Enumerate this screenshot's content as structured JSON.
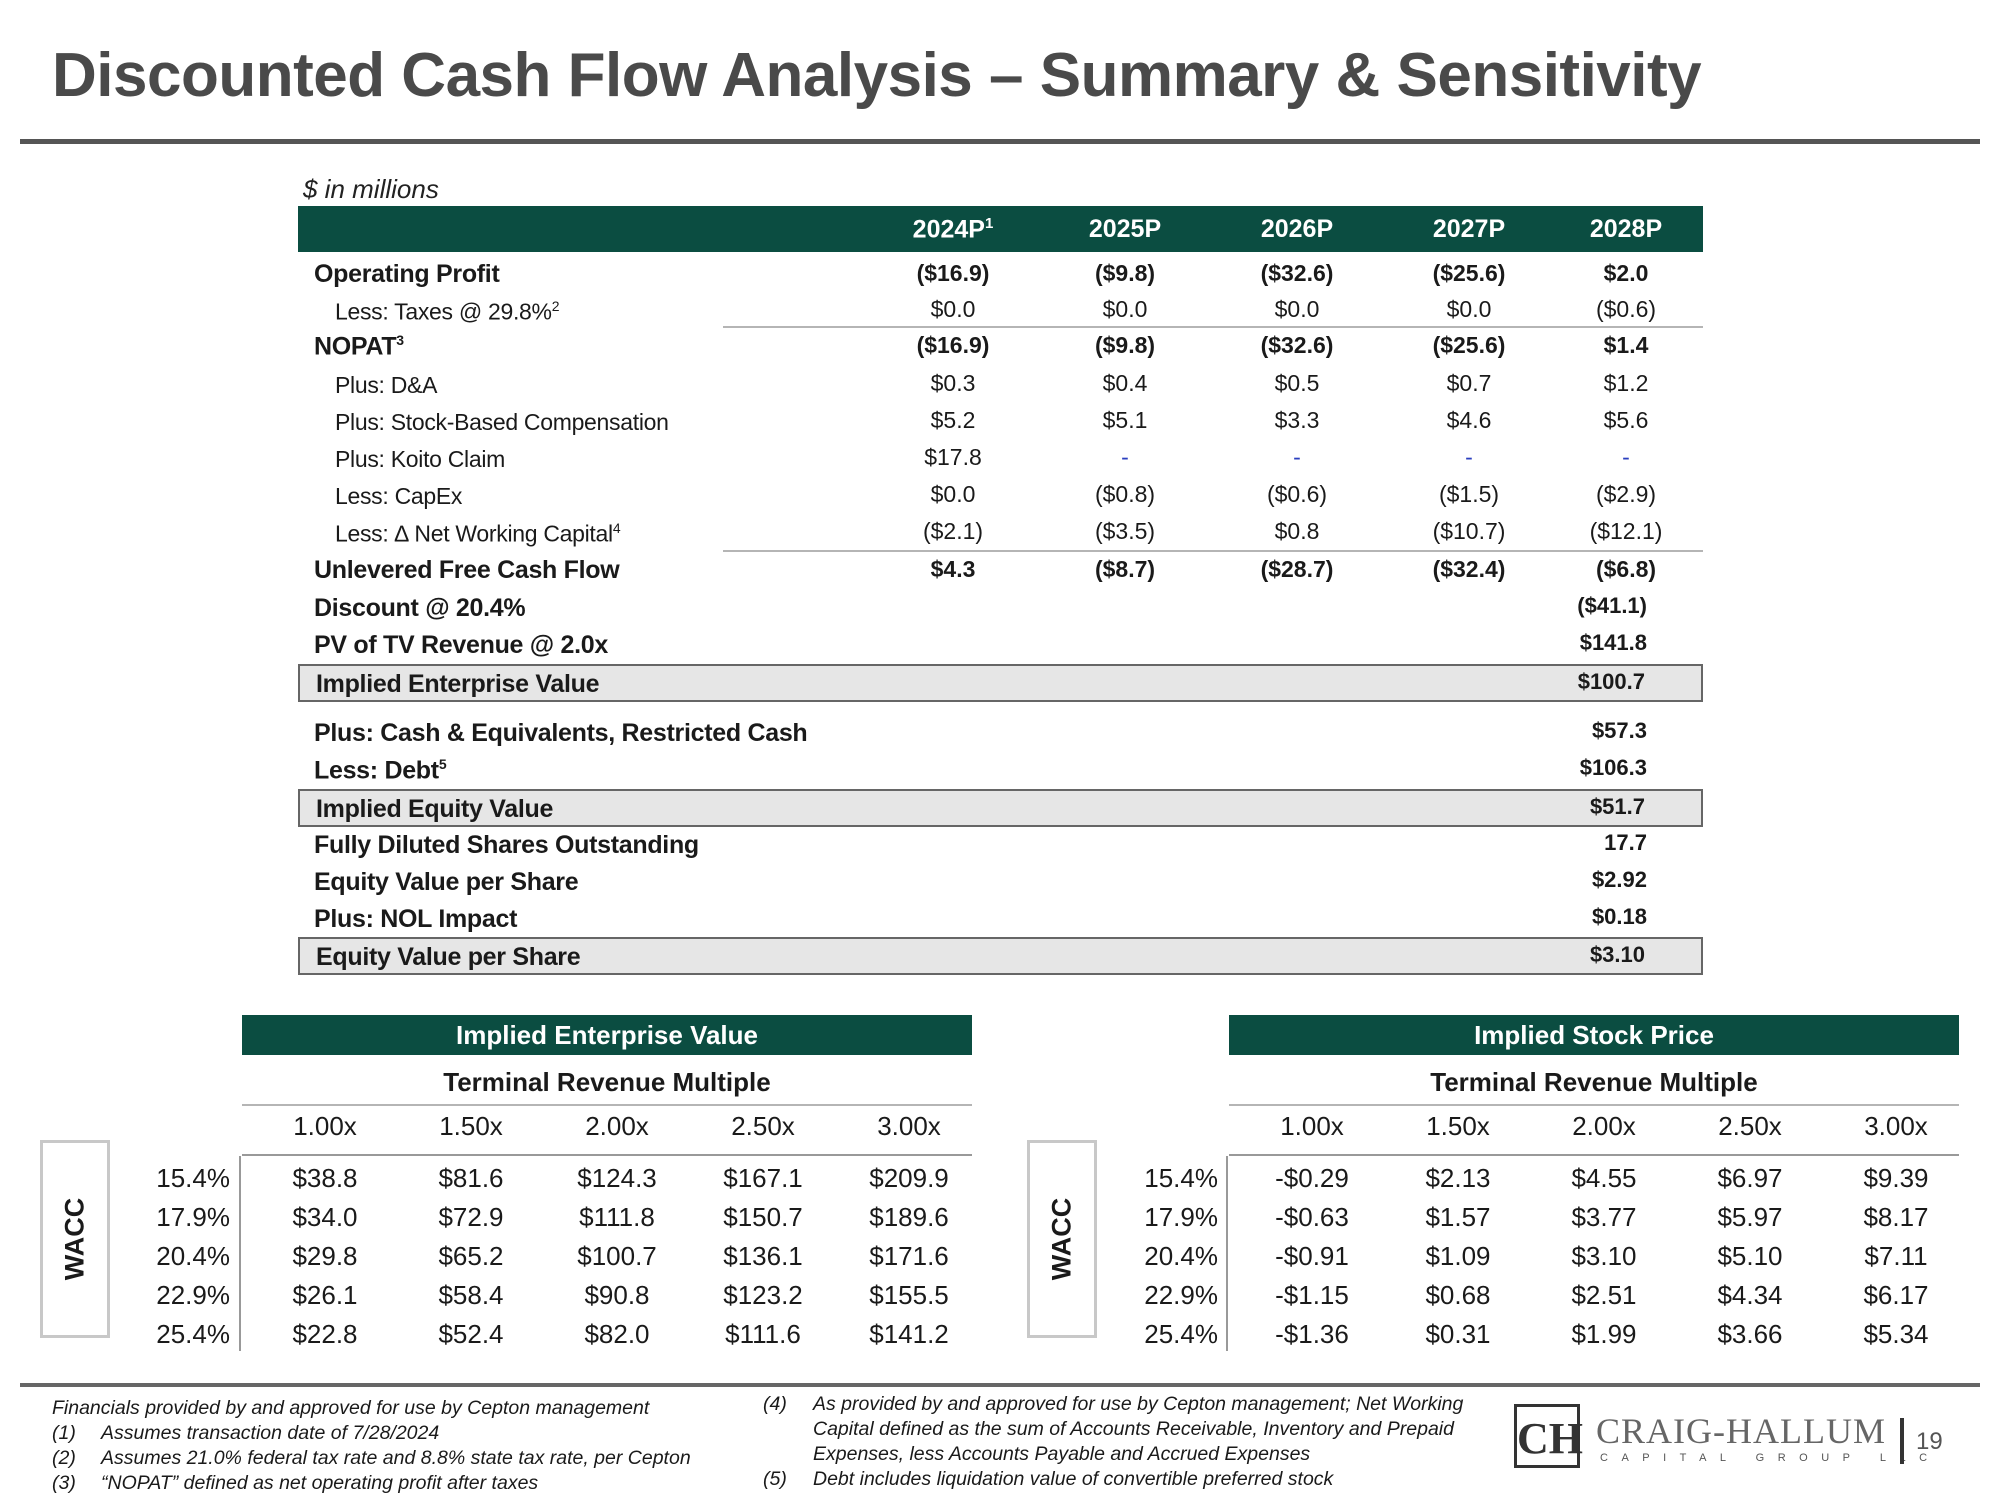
{
  "title": "Discounted Cash Flow Analysis – Summary & Sensitivity",
  "units": "$ in millions",
  "years": [
    {
      "label": "2024P",
      "sup": "1"
    },
    {
      "label": "2025P",
      "sup": ""
    },
    {
      "label": "2026P",
      "sup": ""
    },
    {
      "label": "2027P",
      "sup": ""
    },
    {
      "label": "2028P",
      "sup": ""
    }
  ],
  "rows": {
    "operating_profit": {
      "label": "Operating Profit",
      "sup": "",
      "values": [
        "($16.9)",
        "($9.8)",
        "($32.6)",
        "($25.6)",
        "$2.0"
      ]
    },
    "taxes": {
      "label": "Less: Taxes @ 29.8%",
      "sup": "2",
      "values": [
        "$0.0",
        "$0.0",
        "$0.0",
        "$0.0",
        "($0.6)"
      ]
    },
    "nopat": {
      "label": "NOPAT",
      "sup": "3",
      "values": [
        "($16.9)",
        "($9.8)",
        "($32.6)",
        "($25.6)",
        "$1.4"
      ]
    },
    "da": {
      "label": "Plus: D&A",
      "sup": "",
      "values": [
        "$0.3",
        "$0.4",
        "$0.5",
        "$0.7",
        "$1.2"
      ]
    },
    "sbc": {
      "label": "Plus: Stock-Based Compensation",
      "sup": "",
      "values": [
        "$5.2",
        "$5.1",
        "$3.3",
        "$4.6",
        "$5.6"
      ]
    },
    "koito": {
      "label": "Plus: Koito Claim",
      "sup": "",
      "values": [
        "$17.8",
        "-",
        "-",
        "-",
        "-"
      ]
    },
    "capex": {
      "label": "Less: CapEx",
      "sup": "",
      "values": [
        "$0.0",
        "($0.8)",
        "($0.6)",
        "($1.5)",
        "($2.9)"
      ]
    },
    "nwc": {
      "label": "Less: ∆ Net Working Capital",
      "sup": "4",
      "values": [
        "($2.1)",
        "($3.5)",
        "$0.8",
        "($10.7)",
        "($12.1)"
      ]
    },
    "ufcf": {
      "label": "Unlevered Free Cash Flow",
      "sup": "",
      "values": [
        "$4.3",
        "($8.7)",
        "($28.7)",
        "($32.4)",
        "($6.8)"
      ]
    }
  },
  "totals": {
    "discount": {
      "label": "Discount @ 20.4%",
      "sup": "",
      "value": "($41.1)"
    },
    "pv_tv": {
      "label": "PV of TV Revenue @ 2.0x",
      "sup": "",
      "value": "$141.8"
    },
    "ev": {
      "label": "Implied Enterprise Value",
      "sup": "",
      "value": "$100.7"
    },
    "cash": {
      "label": "Plus: Cash & Equivalents, Restricted Cash",
      "sup": "",
      "value": "$57.3"
    },
    "debt": {
      "label": "Less: Debt",
      "sup": "5",
      "value": "$106.3"
    },
    "equity": {
      "label": "Implied Equity Value",
      "sup": "",
      "value": "$51.7"
    },
    "shares": {
      "label": "Fully Diluted Shares Outstanding",
      "sup": "",
      "value": "17.7"
    },
    "evps": {
      "label": "Equity Value per Share",
      "sup": "",
      "value": "$2.92"
    },
    "nol": {
      "label": "Plus: NOL Impact",
      "sup": "",
      "value": "$0.18"
    },
    "evps_final": {
      "label": "Equity Value per Share",
      "sup": "",
      "value": "$3.10"
    }
  },
  "sensitivity": {
    "ev": {
      "header": "Implied Enterprise Value",
      "subheader": "Terminal Revenue Multiple",
      "axis_label": "WACC",
      "multiples": [
        "1.00x",
        "1.50x",
        "2.00x",
        "2.50x",
        "3.00x"
      ],
      "wacc": [
        "15.4%",
        "17.9%",
        "20.4%",
        "22.9%",
        "25.4%"
      ],
      "grid": [
        [
          "$38.8",
          "$81.6",
          "$124.3",
          "$167.1",
          "$209.9"
        ],
        [
          "$34.0",
          "$72.9",
          "$111.8",
          "$150.7",
          "$189.6"
        ],
        [
          "$29.8",
          "$65.2",
          "$100.7",
          "$136.1",
          "$171.6"
        ],
        [
          "$26.1",
          "$58.4",
          "$90.8",
          "$123.2",
          "$155.5"
        ],
        [
          "$22.8",
          "$52.4",
          "$82.0",
          "$111.6",
          "$141.2"
        ]
      ]
    },
    "price": {
      "header": "Implied Stock Price",
      "subheader": "Terminal Revenue Multiple",
      "axis_label": "WACC",
      "multiples": [
        "1.00x",
        "1.50x",
        "2.00x",
        "2.50x",
        "3.00x"
      ],
      "wacc": [
        "15.4%",
        "17.9%",
        "20.4%",
        "22.9%",
        "25.4%"
      ],
      "grid": [
        [
          "-$0.29",
          "$2.13",
          "$4.55",
          "$6.97",
          "$9.39"
        ],
        [
          "-$0.63",
          "$1.57",
          "$3.77",
          "$5.97",
          "$8.17"
        ],
        [
          "-$0.91",
          "$1.09",
          "$3.10",
          "$5.10",
          "$7.11"
        ],
        [
          "-$1.15",
          "$0.68",
          "$2.51",
          "$4.34",
          "$6.17"
        ],
        [
          "-$1.36",
          "$0.31",
          "$1.99",
          "$3.66",
          "$5.34"
        ]
      ]
    }
  },
  "footnotes": {
    "intro": "Financials provided by and approved for use by Cepton management",
    "n1": {
      "num": "(1)",
      "text": "Assumes transaction date of 7/28/2024"
    },
    "n2": {
      "num": "(2)",
      "text": "Assumes 21.0% federal tax rate and 8.8% state tax rate, per Cepton"
    },
    "n3": {
      "num": "(3)",
      "text": "“NOPAT” defined as net operating profit after taxes"
    },
    "n4": {
      "num": "(4)",
      "lines": [
        "As provided by and approved for use by Cepton management; Net Working",
        "Capital defined as the sum of Accounts Receivable, Inventory and Prepaid",
        "Expenses, less Accounts Payable and Accrued Expenses"
      ]
    },
    "n5": {
      "num": "(5)",
      "text": "Debt includes liquidation value of convertible preferred stock"
    }
  },
  "brand": {
    "name": "CRAIG-HALLUM",
    "sub": "CAPITAL GROUP LLC",
    "mark": "CH"
  },
  "page_number": "19",
  "colors": {
    "header_green": "#0b4d41",
    "title_gray": "#4a4a4a",
    "dash_blue": "#2b3fbf",
    "box_fill": "#e6e6e6"
  }
}
